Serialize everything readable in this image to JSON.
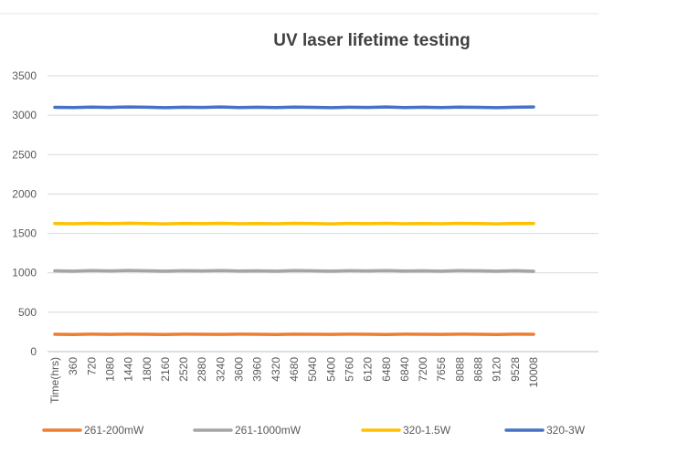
{
  "chart_data": {
    "type": "line",
    "title": "UV laser lifetime testing",
    "xlabel": "",
    "ylabel": "",
    "ylim": [
      0,
      3500
    ],
    "yticks": [
      0,
      500,
      1000,
      1500,
      2000,
      2500,
      3000,
      3500
    ],
    "grid": true,
    "legend_position": "bottom",
    "categories": [
      "Time(hrs)",
      "360",
      "720",
      "1080",
      "1440",
      "1800",
      "2160",
      "2520",
      "2880",
      "3240",
      "3600",
      "3960",
      "4320",
      "4680",
      "5040",
      "5400",
      "5760",
      "6120",
      "6480",
      "6840",
      "7200",
      "7656",
      "8088",
      "8688",
      "9120",
      "9528",
      "10008"
    ],
    "series": [
      {
        "name": "261-200mW",
        "color": "#ED7D31",
        "values": [
          220,
          218,
          221,
          219,
          222,
          220,
          218,
          221,
          220,
          219,
          221,
          220,
          218,
          222,
          220,
          219,
          221,
          220,
          218,
          221,
          220,
          219,
          222,
          220,
          218,
          221,
          220
        ]
      },
      {
        "name": "261-1000mW",
        "color": "#A5A5A5",
        "values": [
          1025,
          1022,
          1028,
          1024,
          1030,
          1026,
          1021,
          1027,
          1024,
          1029,
          1023,
          1026,
          1022,
          1028,
          1025,
          1021,
          1027,
          1024,
          1029,
          1023,
          1026,
          1022,
          1028,
          1025,
          1021,
          1027,
          1020
        ]
      },
      {
        "name": "320-1.5W",
        "color": "#FFC000",
        "values": [
          1625,
          1622,
          1628,
          1624,
          1630,
          1626,
          1621,
          1627,
          1624,
          1629,
          1623,
          1626,
          1622,
          1628,
          1625,
          1621,
          1627,
          1624,
          1629,
          1623,
          1626,
          1622,
          1628,
          1625,
          1621,
          1627,
          1626
        ]
      },
      {
        "name": "320-3W",
        "color": "#4472C4",
        "values": [
          3100,
          3097,
          3103,
          3099,
          3105,
          3101,
          3096,
          3102,
          3099,
          3104,
          3098,
          3101,
          3097,
          3103,
          3100,
          3096,
          3102,
          3099,
          3104,
          3098,
          3101,
          3097,
          3103,
          3100,
          3096,
          3102,
          3104
        ]
      }
    ]
  }
}
